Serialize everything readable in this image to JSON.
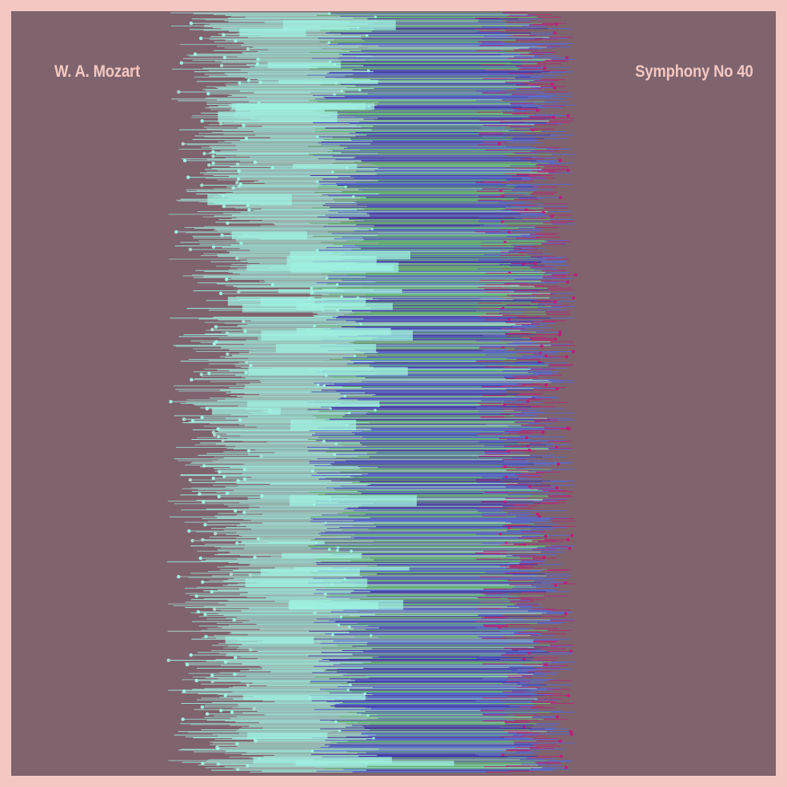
{
  "poster": {
    "composer": "W. A. Mozart",
    "title": "Symphony No 40"
  },
  "colors": {
    "border": "#f4c8c2",
    "background": "#7f636d",
    "text": "#f4c8c2",
    "palette": [
      "#9ff2e2",
      "#a9d9cc",
      "#5ad67a",
      "#4a6ef0",
      "#2c2fc2",
      "#c21a7a"
    ]
  }
}
